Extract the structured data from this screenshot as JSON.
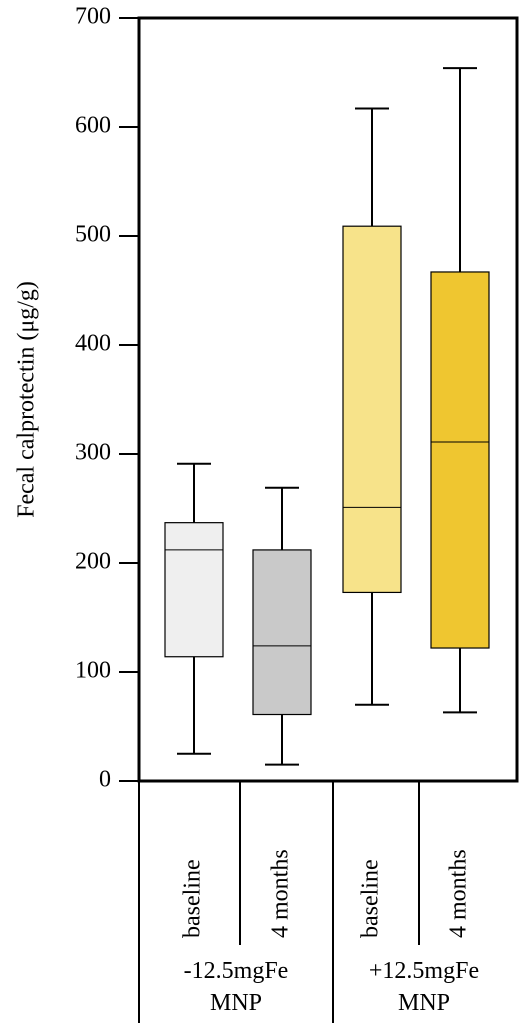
{
  "chart_data": {
    "type": "box",
    "ylabel": "Fecal calprotectin (μg/g)",
    "ylim": [
      0,
      700
    ],
    "yticks": [
      0,
      100,
      200,
      300,
      400,
      500,
      600,
      700
    ],
    "categories": [
      "baseline",
      "4 months",
      "baseline",
      "4 months"
    ],
    "groups": [
      {
        "label_line1": "-12.5mgFe",
        "label_line2": "MNP"
      },
      {
        "label_line1": "+12.5mgFe",
        "label_line2": "MNP"
      }
    ],
    "boxes": [
      {
        "group": 0,
        "label": "baseline",
        "color": "#efefef",
        "whisker_low": 25,
        "q1": 114,
        "median": 212,
        "q3": 237,
        "whisker_high": 291
      },
      {
        "group": 0,
        "label": "4 months",
        "color": "#c9c9c9",
        "whisker_low": 15,
        "q1": 61,
        "median": 124,
        "q3": 212,
        "whisker_high": 269
      },
      {
        "group": 1,
        "label": "baseline",
        "color": "#f7e38a",
        "whisker_low": 70,
        "q1": 173,
        "median": 251,
        "q3": 509,
        "whisker_high": 617
      },
      {
        "group": 1,
        "label": "4 months",
        "color": "#efc630",
        "whisker_low": 63,
        "q1": 122,
        "median": 311,
        "q3": 467,
        "whisker_high": 654
      }
    ],
    "grid": false
  }
}
